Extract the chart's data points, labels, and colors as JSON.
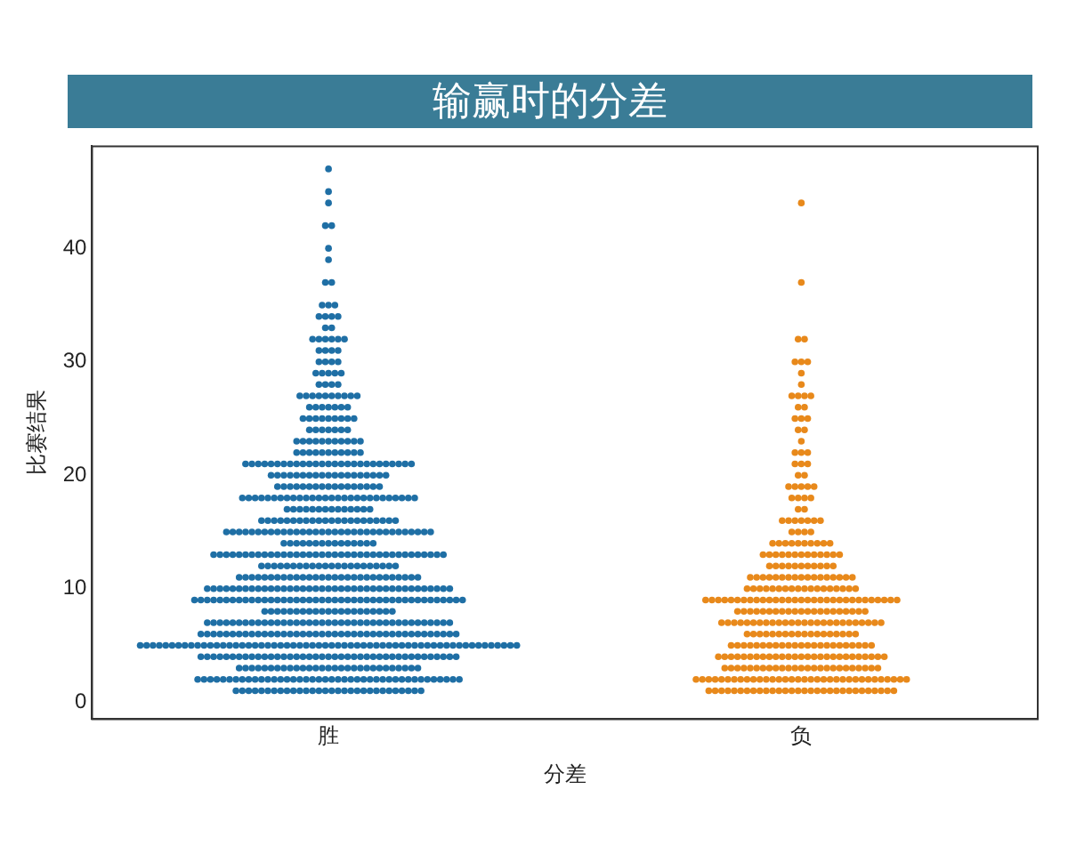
{
  "chart_data": {
    "type": "scatter",
    "title": "输赢时的分差",
    "xlabel": "分差",
    "ylabel": "比赛结果",
    "categories": [
      "胜",
      "负"
    ],
    "ylim": [
      -1.5,
      49
    ],
    "yticks": [
      0,
      10,
      20,
      30,
      40
    ],
    "series": [
      {
        "color": "#1f6fa5",
        "x": [
          "胜",
          "胜",
          "胜",
          "胜",
          "胜",
          "胜",
          "胜",
          "胜",
          "胜",
          "胜",
          "胜",
          "胜",
          "胜",
          "胜",
          "胜",
          "胜",
          "胜",
          "胜",
          "胜",
          "胜",
          "胜",
          "胜",
          "胜",
          "胜",
          "胜",
          "胜",
          "胜",
          "胜",
          "胜",
          "胜",
          "胜",
          "胜",
          "胜",
          "胜",
          "胜",
          "胜",
          "胜",
          "胜",
          "胜",
          "胜",
          "胜",
          "胜",
          "胜",
          "胜",
          "胜",
          "胜",
          "胜",
          "胜",
          "胜",
          "胜",
          "胜",
          "胜",
          "胜",
          "胜",
          "胜",
          "胜",
          "胜",
          "胜",
          "胜",
          "胜",
          "胜",
          "胜",
          "胜",
          "胜",
          "胜",
          "胜",
          "胜",
          "胜",
          "胜",
          "胜",
          "胜",
          "胜",
          "胜",
          "胜",
          "胜",
          "胜",
          "胜",
          "胜",
          "胜",
          "胜",
          "胜",
          "胜",
          "胜",
          "胜",
          "胜",
          "胜",
          "胜",
          "胜",
          "胜",
          "胜",
          "胜",
          "胜",
          "胜",
          "胜",
          "胜",
          "胜",
          "胜",
          "胜",
          "胜",
          "胜",
          "胜",
          "胜",
          "胜",
          "胜",
          "胜",
          "胜",
          "胜",
          "胜",
          "胜",
          "胜",
          "胜",
          "胜",
          "胜",
          "胜",
          "胜",
          "胜",
          "胜",
          "胜",
          "胜",
          "胜",
          "胜",
          "胜",
          "胜",
          "胜",
          "胜",
          "胜",
          "胜",
          "胜",
          "胜",
          "胜",
          "胜",
          "胜",
          "胜",
          "胜",
          "胜",
          "胜",
          "胜",
          "胜",
          "胜",
          "胜",
          "胜",
          "胜",
          "胜",
          "胜",
          "胜",
          "胜",
          "胜",
          "胜",
          "胜",
          "胜",
          "胜",
          "胜",
          "胜",
          "胜",
          "胜",
          "胜",
          "胜",
          "胜",
          "胜",
          "胜",
          "胜",
          "胜",
          "胜",
          "胜",
          "胜",
          "胜",
          "胜",
          "胜",
          "胜",
          "胜",
          "胜",
          "胜",
          "胜",
          "胜",
          "胜",
          "胜",
          "胜",
          "胜",
          "胜",
          "胜",
          "胜",
          "胜",
          "胜",
          "胜",
          "胜",
          "胜",
          "胜",
          "胜",
          "胜",
          "胜",
          "胜",
          "胜",
          "胜",
          "胜",
          "胜",
          "胜",
          "胜",
          "胜",
          "胜",
          "胜",
          "胜",
          "胜",
          "胜",
          "胜",
          "胜",
          "胜",
          "胜",
          "胜",
          "胜",
          "胜",
          "胜",
          "胜",
          "胜",
          "胜",
          "胜",
          "胜",
          "胜",
          "胜",
          "胜",
          "胜",
          "胜",
          "胜",
          "胜",
          "胜",
          "胜",
          "胜",
          "胜",
          "胜",
          "胜",
          "胜",
          "胜",
          "胜",
          "胜",
          "胜",
          "胜",
          "胜",
          "胜",
          "胜",
          "胜",
          "胜",
          "胜",
          "胜",
          "胜",
          "胜",
          "胜",
          "胜",
          "胜",
          "胜",
          "胜",
          "胜",
          "胜",
          "胜",
          "胜",
          "胜",
          "胜",
          "胜",
          "胜",
          "胜",
          "胜",
          "胜",
          "胜",
          "胜",
          "胜",
          "胜",
          "胜",
          "胜",
          "胜",
          "胜",
          "胜",
          "胜",
          "胜",
          "胜",
          "胜",
          "胜",
          "胜",
          "胜",
          "胜",
          "胜",
          "胜",
          "胜",
          "胜",
          "胜",
          "胜",
          "胜",
          "胜",
          "胜",
          "胜",
          "胜",
          "胜",
          "胜",
          "胜",
          "胜",
          "胜",
          "胜",
          "胜",
          "胜",
          "胜",
          "胜",
          "胜",
          "胜",
          "胜",
          "胜",
          "胜",
          "胜",
          "胜",
          "胜",
          "胜",
          "胜",
          "胜",
          "胜",
          "胜",
          "胜",
          "胜",
          "胜",
          "胜",
          "胜",
          "胜",
          "胜",
          "胜",
          "胜",
          "胜",
          "胜",
          "胜",
          "胜",
          "胜",
          "胜",
          "胜",
          "胜",
          "胜",
          "胜",
          "胜",
          "胜",
          "胜",
          "胜",
          "胜",
          "胜",
          "胜",
          "胜",
          "胜",
          "胜",
          "胜",
          "胜",
          "胜",
          "胜",
          "胜",
          "胜",
          "胜",
          "胜",
          "胜",
          "胜",
          "胜",
          "胜",
          "胜",
          "胜",
          "胜",
          "胜",
          "胜",
          "胜",
          "胜",
          "胜",
          "胜",
          "胜",
          "胜",
          "胜",
          "胜",
          "胜",
          "胜",
          "胜",
          "胜",
          "胜",
          "胜",
          "胜",
          "胜",
          "胜",
          "胜",
          "胜",
          "胜",
          "胜",
          "胜",
          "胜",
          "胜",
          "胜",
          "胜",
          "胜",
          "胜",
          "胜",
          "胜",
          "胜",
          "胜",
          "胜",
          "胜",
          "胜",
          "胜",
          "胜",
          "胜",
          "胜",
          "胜",
          "胜",
          "胜",
          "胜",
          "胜",
          "胜",
          "胜",
          "胜",
          "胜",
          "胜",
          "胜",
          "胜",
          "胜",
          "胜",
          "胜",
          "胜",
          "胜",
          "胜",
          "胜",
          "胜",
          "胜",
          "胜",
          "胜",
          "胜",
          "胜",
          "胜",
          "胜",
          "胜",
          "胜",
          "胜",
          "胜",
          "胜",
          "胜",
          "胜",
          "胜",
          "胜",
          "胜",
          "胜",
          "胜",
          "胜",
          "胜",
          "胜",
          "胜",
          "胜",
          "胜",
          "胜",
          "胜",
          "胜",
          "胜",
          "胜",
          "胜",
          "胜",
          "胜",
          "胜",
          "胜",
          "胜",
          "胜",
          "胜",
          "胜",
          "胜",
          "胜",
          "胜",
          "胜",
          "胜",
          "胜",
          "胜",
          "胜",
          "胜",
          "胜",
          "胜",
          "胜",
          "胜",
          "胜",
          "胜",
          "胜",
          "胜",
          "胜",
          "胜",
          "胜",
          "胜",
          "胜",
          "胜",
          "胜",
          "胜",
          "胜",
          "胜",
          "胜",
          "胜",
          "胜",
          "胜",
          "胜",
          "胜",
          "胜",
          "胜",
          "胜",
          "胜",
          "胜",
          "胜",
          "胜",
          "胜",
          "胜",
          "胜",
          "胜",
          "胜",
          "胜",
          "胜",
          "胜",
          "胜",
          "胜",
          "胜",
          "胜",
          "胜",
          "胜",
          "胜",
          "胜",
          "胜",
          "胜",
          "胜",
          "胜",
          "胜",
          "胜",
          "胜",
          "胜",
          "胜",
          "胜",
          "胜",
          "胜",
          "胜",
          "胜",
          "胜",
          "胜",
          "胜",
          "胜",
          "胜",
          "胜",
          "胜",
          "胜",
          "胜",
          "胜",
          "胜",
          "胜",
          "胜",
          "胜",
          "胜",
          "胜",
          "胜",
          "胜",
          "胜",
          "胜",
          "胜",
          "胜",
          "胜",
          "胜",
          "胜",
          "胜",
          "胜",
          "胜",
          "胜",
          "胜",
          "胜",
          "胜",
          "胜",
          "胜",
          "胜",
          "胜",
          "胜",
          "胜",
          "胜",
          "胜",
          "胜",
          "胜",
          "胜",
          "胜",
          "胜",
          "胜",
          "胜",
          "胜",
          "胜",
          "胜",
          "胜",
          "胜",
          "胜",
          "胜",
          "胜",
          "胜",
          "胜",
          "胜",
          "胜",
          "胜",
          "胜",
          "胜",
          "胜",
          "胜",
          "胜",
          "胜",
          "胜",
          "胜",
          "胜",
          "胜",
          "胜",
          "胜",
          "胜",
          "胜",
          "胜",
          "胜",
          "胜",
          "胜",
          "胜",
          "胜",
          "胜",
          "胜",
          "胜",
          "胜",
          "胜",
          "胜",
          "胜",
          "胜",
          "胜",
          "胜",
          "胜",
          "胜",
          "胜",
          "胜",
          "胜",
          "胜",
          "胜",
          "胜",
          "胜",
          "胜",
          "胜",
          "胜",
          "胜",
          "胜",
          "胜",
          "胜",
          "胜",
          "胜",
          "胜",
          "胜",
          "胜",
          "胜",
          "胜",
          "胜",
          "胜",
          "胜",
          "胜",
          "胜",
          "胜",
          "胜",
          "胜",
          "胜",
          "胜",
          "胜",
          "胜",
          "胜",
          "胜",
          "胜",
          "胜",
          "胜",
          "胜",
          "胜",
          "胜",
          "胜",
          "胜",
          "胜",
          "胜",
          "胜",
          "胜",
          "胜",
          "胜",
          "胜",
          "胜",
          "胜",
          "胜",
          "胜",
          "胜",
          "胜",
          "胜",
          "胜",
          "胜",
          "胜",
          "胜",
          "胜",
          "胜",
          "胜",
          "胜",
          "胜",
          "胜",
          "胜",
          "胜",
          "胜",
          "胜",
          "胜",
          "胜",
          "胜",
          "胜",
          "胜",
          "胜",
          "胜",
          "胜",
          "胜",
          "胜",
          "胜",
          "胜",
          "胜",
          "胜",
          "胜",
          "胜",
          "胜",
          "胜",
          "胜",
          "胜",
          "胜",
          "胜",
          "胜",
          "胜",
          "胜",
          "胜",
          "胜",
          "胜",
          "胜",
          "胜",
          "胜",
          "胜",
          "胜",
          "胜",
          "胜",
          "胜",
          "胜",
          "胜",
          "胜",
          "胜",
          "胜",
          "胜",
          "胜",
          "胜",
          "胜",
          "胜",
          "胜",
          "胜",
          "胜",
          "胜",
          "胜",
          "胜",
          "胜",
          "胜",
          "胜",
          "胜"
        ],
        "values": [
          1,
          1,
          1,
          1,
          1,
          1,
          1,
          1,
          1,
          1,
          1,
          1,
          1,
          1,
          1,
          1,
          1,
          1,
          1,
          1,
          1,
          1,
          1,
          1,
          1,
          1,
          1,
          1,
          1,
          1,
          2,
          2,
          2,
          2,
          2,
          2,
          2,
          2,
          2,
          2,
          2,
          2,
          2,
          2,
          2,
          2,
          2,
          2,
          2,
          2,
          2,
          2,
          2,
          2,
          2,
          2,
          2,
          2,
          2,
          2,
          2,
          2,
          2,
          2,
          2,
          2,
          2,
          2,
          2,
          2,
          2,
          2,
          3,
          3,
          3,
          3,
          3,
          3,
          3,
          3,
          3,
          3,
          3,
          3,
          3,
          3,
          3,
          3,
          3,
          3,
          3,
          3,
          3,
          3,
          3,
          3,
          3,
          3,
          3,
          3,
          3,
          4,
          4,
          4,
          4,
          4,
          4,
          4,
          4,
          4,
          4,
          4,
          4,
          4,
          4,
          4,
          4,
          4,
          4,
          4,
          4,
          4,
          4,
          4,
          4,
          4,
          4,
          4,
          4,
          4,
          4,
          4,
          4,
          4,
          4,
          4,
          4,
          4,
          4,
          4,
          4,
          4,
          5,
          5,
          5,
          5,
          5,
          5,
          5,
          5,
          5,
          5,
          5,
          5,
          5,
          5,
          5,
          5,
          5,
          5,
          5,
          5,
          5,
          5,
          5,
          5,
          5,
          5,
          5,
          5,
          5,
          5,
          5,
          5,
          5,
          5,
          5,
          5,
          5,
          5,
          5,
          5,
          5,
          5,
          5,
          5,
          5,
          5,
          5,
          5,
          5,
          5,
          5,
          5,
          5,
          5,
          5,
          5,
          5,
          5,
          5,
          5,
          6,
          6,
          6,
          6,
          6,
          6,
          6,
          6,
          6,
          6,
          6,
          6,
          6,
          6,
          6,
          6,
          6,
          6,
          6,
          6,
          6,
          6,
          6,
          6,
          6,
          6,
          6,
          6,
          6,
          6,
          6,
          6,
          6,
          6,
          6,
          6,
          6,
          6,
          6,
          6,
          6,
          7,
          7,
          7,
          7,
          7,
          7,
          7,
          7,
          7,
          7,
          7,
          7,
          7,
          7,
          7,
          7,
          7,
          7,
          7,
          7,
          7,
          7,
          7,
          7,
          7,
          7,
          7,
          7,
          7,
          7,
          7,
          7,
          7,
          7,
          7,
          7,
          7,
          7,
          7,
          8,
          8,
          8,
          8,
          8,
          8,
          8,
          8,
          8,
          8,
          8,
          8,
          8,
          8,
          8,
          8,
          8,
          8,
          8,
          8,
          8,
          9,
          9,
          9,
          9,
          9,
          9,
          9,
          9,
          9,
          9,
          9,
          9,
          9,
          9,
          9,
          9,
          9,
          9,
          9,
          9,
          9,
          9,
          9,
          9,
          9,
          9,
          9,
          9,
          9,
          9,
          9,
          9,
          9,
          9,
          9,
          9,
          9,
          9,
          9,
          9,
          9,
          9,
          9,
          10,
          10,
          10,
          10,
          10,
          10,
          10,
          10,
          10,
          10,
          10,
          10,
          10,
          10,
          10,
          10,
          10,
          10,
          10,
          10,
          10,
          10,
          10,
          10,
          10,
          10,
          10,
          10,
          10,
          10,
          10,
          10,
          10,
          10,
          10,
          10,
          10,
          10,
          10,
          11,
          11,
          11,
          11,
          11,
          11,
          11,
          11,
          11,
          11,
          11,
          11,
          11,
          11,
          11,
          11,
          11,
          11,
          11,
          11,
          11,
          11,
          11,
          11,
          11,
          11,
          11,
          11,
          11,
          12,
          12,
          12,
          12,
          12,
          12,
          12,
          12,
          12,
          12,
          12,
          12,
          12,
          12,
          12,
          12,
          12,
          12,
          12,
          12,
          12,
          12,
          13,
          13,
          13,
          13,
          13,
          13,
          13,
          13,
          13,
          13,
          13,
          13,
          13,
          13,
          13,
          13,
          13,
          13,
          13,
          13,
          13,
          13,
          13,
          13,
          13,
          13,
          13,
          13,
          13,
          13,
          13,
          13,
          13,
          13,
          13,
          13,
          13,
          14,
          14,
          14,
          14,
          14,
          14,
          14,
          14,
          14,
          14,
          14,
          14,
          14,
          14,
          14,
          15,
          15,
          15,
          15,
          15,
          15,
          15,
          15,
          15,
          15,
          15,
          15,
          15,
          15,
          15,
          15,
          15,
          15,
          15,
          15,
          15,
          15,
          15,
          15,
          15,
          15,
          15,
          15,
          15,
          15,
          15,
          15,
          15,
          16,
          16,
          16,
          16,
          16,
          16,
          16,
          16,
          16,
          16,
          16,
          16,
          16,
          16,
          16,
          16,
          16,
          16,
          16,
          16,
          16,
          16,
          17,
          17,
          17,
          17,
          17,
          17,
          17,
          17,
          17,
          17,
          17,
          17,
          17,
          17,
          18,
          18,
          18,
          18,
          18,
          18,
          18,
          18,
          18,
          18,
          18,
          18,
          18,
          18,
          18,
          18,
          18,
          18,
          18,
          18,
          18,
          18,
          18,
          18,
          18,
          18,
          18,
          18,
          19,
          19,
          19,
          19,
          19,
          19,
          19,
          19,
          19,
          19,
          19,
          19,
          19,
          19,
          19,
          19,
          19,
          20,
          20,
          20,
          20,
          20,
          20,
          20,
          20,
          20,
          20,
          20,
          20,
          20,
          20,
          20,
          20,
          20,
          20,
          20,
          21,
          21,
          21,
          21,
          21,
          21,
          21,
          21,
          21,
          21,
          21,
          21,
          21,
          21,
          21,
          21,
          21,
          21,
          21,
          21,
          21,
          21,
          21,
          21,
          21,
          21,
          21,
          22,
          22,
          22,
          22,
          22,
          22,
          22,
          22,
          22,
          22,
          22,
          23,
          23,
          23,
          23,
          23,
          23,
          23,
          23,
          23,
          23,
          23,
          24,
          24,
          24,
          24,
          24,
          24,
          24,
          25,
          25,
          25,
          25,
          25,
          25,
          25,
          25,
          25,
          26,
          26,
          26,
          26,
          26,
          26,
          26,
          27,
          27,
          27,
          27,
          27,
          27,
          27,
          27,
          27,
          27,
          28,
          28,
          28,
          28,
          29,
          29,
          29,
          29,
          29,
          30,
          30,
          30,
          30,
          31,
          31,
          31,
          31,
          32,
          32,
          32,
          32,
          32,
          32,
          33,
          33,
          34,
          34,
          34,
          34,
          35,
          35,
          35,
          37,
          37,
          39,
          40,
          42,
          42,
          44,
          45,
          47
        ]
      },
      {
        "color": "#e8891b",
        "x": [
          "负",
          "负",
          "负",
          "负",
          "负",
          "负",
          "负",
          "负",
          "负",
          "负",
          "负",
          "负",
          "负",
          "负",
          "负",
          "负",
          "负",
          "负",
          "负",
          "负",
          "负",
          "负",
          "负",
          "负",
          "负",
          "负",
          "负",
          "负",
          "负",
          "负",
          "负",
          "负",
          "负",
          "负",
          "负",
          "负",
          "负",
          "负",
          "负",
          "负",
          "负",
          "负",
          "负",
          "负",
          "负",
          "负",
          "负",
          "负",
          "负",
          "负",
          "负",
          "负",
          "负",
          "负",
          "负",
          "负",
          "负",
          "负",
          "负",
          "负",
          "负",
          "负",
          "负",
          "负",
          "负",
          "负",
          "负",
          "负",
          "负",
          "负",
          "负",
          "负",
          "负",
          "负",
          "负",
          "负",
          "负",
          "负",
          "负",
          "负",
          "负",
          "负",
          "负",
          "负",
          "负",
          "负",
          "负",
          "负",
          "负",
          "负",
          "负",
          "负",
          "负",
          "负",
          "负",
          "负",
          "负",
          "负",
          "负",
          "负",
          "负",
          "负",
          "负",
          "负",
          "负",
          "负",
          "负",
          "负",
          "负",
          "负",
          "负",
          "负",
          "负",
          "负",
          "负",
          "负",
          "负",
          "负",
          "负",
          "负",
          "负",
          "负",
          "负",
          "负",
          "负",
          "负",
          "负",
          "负",
          "负",
          "负",
          "负",
          "负",
          "负",
          "负",
          "负",
          "负",
          "负",
          "负",
          "负",
          "负",
          "负",
          "负",
          "负",
          "负",
          "负",
          "负",
          "负",
          "负",
          "负",
          "负",
          "负",
          "负",
          "负",
          "负",
          "负",
          "负",
          "负",
          "负",
          "负",
          "负",
          "负",
          "负",
          "负",
          "负",
          "负",
          "负",
          "负",
          "负",
          "负",
          "负",
          "负",
          "负",
          "负",
          "负",
          "负",
          "负",
          "负",
          "负",
          "负",
          "负",
          "负",
          "负",
          "负",
          "负",
          "负",
          "负",
          "负",
          "负",
          "负",
          "负",
          "负",
          "负",
          "负",
          "负",
          "负",
          "负",
          "负",
          "负",
          "负",
          "负",
          "负",
          "负",
          "负",
          "负",
          "负",
          "负",
          "负",
          "负",
          "负",
          "负",
          "负",
          "负",
          "负",
          "负",
          "负",
          "负",
          "负",
          "负",
          "负",
          "负",
          "负",
          "负",
          "负",
          "负",
          "负",
          "负",
          "负",
          "负",
          "负",
          "负",
          "负",
          "负",
          "负",
          "负",
          "负",
          "负",
          "负",
          "负",
          "负",
          "负",
          "负",
          "负",
          "负",
          "负",
          "负",
          "负",
          "负",
          "负",
          "负",
          "负",
          "负",
          "负",
          "负",
          "负",
          "负",
          "负",
          "负",
          "负",
          "负",
          "负",
          "负",
          "负",
          "负",
          "负",
          "负",
          "负",
          "负",
          "负",
          "负",
          "负",
          "负",
          "负",
          "负",
          "负",
          "负",
          "负",
          "负",
          "负",
          "负",
          "负",
          "负",
          "负",
          "负",
          "负",
          "负",
          "负",
          "负",
          "负",
          "负",
          "负",
          "负",
          "负",
          "负",
          "负",
          "负",
          "负",
          "负",
          "负",
          "负",
          "负",
          "负",
          "负",
          "负",
          "负",
          "负",
          "负",
          "负",
          "负",
          "负",
          "负",
          "负",
          "负",
          "负",
          "负",
          "负",
          "负",
          "负",
          "负",
          "负",
          "负",
          "负",
          "负",
          "负",
          "负",
          "负",
          "负",
          "负",
          "负",
          "负",
          "负",
          "负",
          "负",
          "负",
          "负",
          "负",
          "负",
          "负",
          "负",
          "负",
          "负",
          "负",
          "负",
          "负",
          "负",
          "负",
          "负",
          "负",
          "负",
          "负",
          "负",
          "负",
          "负",
          "负",
          "负",
          "负"
        ],
        "values": [
          1,
          1,
          1,
          1,
          1,
          1,
          1,
          1,
          1,
          1,
          1,
          1,
          1,
          1,
          1,
          1,
          1,
          1,
          1,
          1,
          1,
          1,
          1,
          1,
          1,
          1,
          1,
          1,
          1,
          1,
          2,
          2,
          2,
          2,
          2,
          2,
          2,
          2,
          2,
          2,
          2,
          2,
          2,
          2,
          2,
          2,
          2,
          2,
          2,
          2,
          2,
          2,
          2,
          2,
          2,
          2,
          2,
          2,
          2,
          2,
          2,
          2,
          2,
          2,
          3,
          3,
          3,
          3,
          3,
          3,
          3,
          3,
          3,
          3,
          3,
          3,
          3,
          3,
          3,
          3,
          3,
          3,
          3,
          3,
          3,
          3,
          3,
          3,
          3,
          4,
          4,
          4,
          4,
          4,
          4,
          4,
          4,
          4,
          4,
          4,
          4,
          4,
          4,
          4,
          4,
          4,
          4,
          4,
          4,
          4,
          4,
          4,
          4,
          4,
          4,
          4,
          5,
          5,
          5,
          5,
          5,
          5,
          5,
          5,
          5,
          5,
          5,
          5,
          5,
          5,
          5,
          5,
          5,
          5,
          5,
          5,
          5,
          5,
          5,
          6,
          6,
          6,
          6,
          6,
          6,
          6,
          6,
          6,
          6,
          6,
          6,
          6,
          6,
          6,
          6,
          6,
          6,
          7,
          7,
          7,
          7,
          7,
          7,
          7,
          7,
          7,
          7,
          7,
          7,
          7,
          7,
          7,
          7,
          7,
          7,
          7,
          7,
          7,
          7,
          7,
          7,
          7,
          7,
          8,
          8,
          8,
          8,
          8,
          8,
          8,
          8,
          8,
          8,
          8,
          8,
          8,
          8,
          8,
          8,
          8,
          8,
          8,
          8,
          8,
          9,
          9,
          9,
          9,
          9,
          9,
          9,
          9,
          9,
          9,
          9,
          9,
          9,
          9,
          9,
          9,
          9,
          9,
          9,
          9,
          9,
          9,
          9,
          9,
          9,
          9,
          9,
          9,
          9,
          9,
          9,
          10,
          10,
          10,
          10,
          10,
          10,
          10,
          10,
          10,
          10,
          10,
          10,
          10,
          10,
          10,
          10,
          10,
          10,
          11,
          11,
          11,
          11,
          11,
          11,
          11,
          11,
          11,
          11,
          11,
          11,
          11,
          11,
          11,
          11,
          11,
          12,
          12,
          12,
          12,
          12,
          12,
          12,
          12,
          12,
          12,
          12,
          13,
          13,
          13,
          13,
          13,
          13,
          13,
          13,
          13,
          13,
          13,
          13,
          13,
          14,
          14,
          14,
          14,
          14,
          14,
          14,
          14,
          14,
          14,
          15,
          15,
          15,
          15,
          16,
          16,
          16,
          16,
          16,
          16,
          16,
          17,
          17,
          18,
          18,
          18,
          18,
          19,
          19,
          19,
          19,
          19,
          20,
          20,
          21,
          21,
          21,
          22,
          22,
          22,
          23,
          24,
          24,
          25,
          25,
          25,
          26,
          26,
          27,
          27,
          27,
          27,
          28,
          29,
          30,
          30,
          30,
          32,
          32,
          37,
          44
        ]
      }
    ]
  }
}
